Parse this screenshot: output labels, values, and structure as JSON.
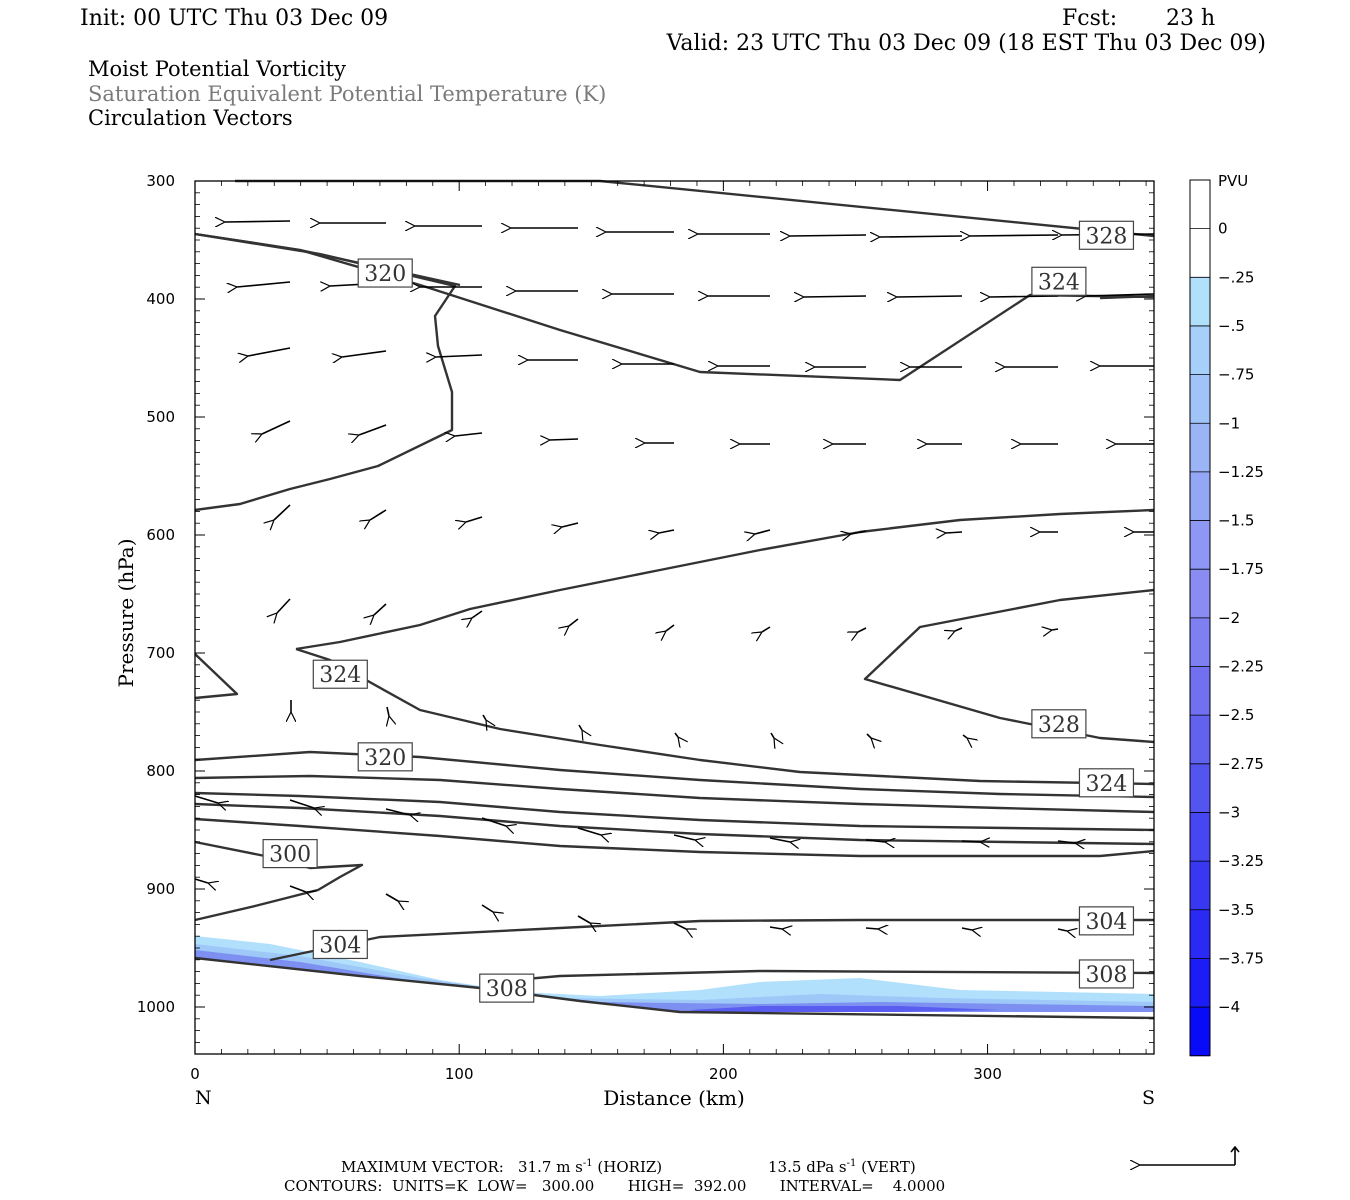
{
  "header": {
    "init": "Init: 00 UTC Thu 03 Dec 09",
    "fcst_label": "Fcst:",
    "fcst_value": "23 h",
    "valid": "Valid: 23 UTC Thu 03 Dec 09 (18 EST Thu 03 Dec 09)",
    "fields": [
      "Moist Potential Vorticity",
      "Saturation Equivalent Potential Temperature (K)",
      "Circulation Vectors"
    ]
  },
  "colors": {
    "contour": "#333333",
    "field2_text": "#7a7a7a",
    "mpv_light": "#b0e0fc",
    "mpv_mid": "#8cc4f8",
    "mpv_dark": "#6a80f0"
  },
  "footer": {
    "max_vector_label": "MAXIMUM VECTOR:",
    "max_vector_h": "31.7",
    "max_vector_h_units": "m s",
    "max_vector_h_tag": "(HORIZ)",
    "max_vector_v": "13.5",
    "max_vector_v_units": "dPa s",
    "max_vector_v_tag": "(VERT)",
    "exponent": "-1",
    "contours": "CONTOURS:  UNITS=K  LOW=   300.00       HIGH=  392.00       INTERVAL=    4.0000"
  },
  "chart_data": {
    "type": "contour",
    "title": "",
    "xlabel": "Distance (km)",
    "ylabel": "Pressure (hPa)",
    "xlim": [
      0,
      363
    ],
    "ylim": [
      1040,
      300
    ],
    "x_ticks": [
      "0",
      "100",
      "200",
      "300"
    ],
    "y_ticks": [
      "300",
      "400",
      "500",
      "600",
      "700",
      "800",
      "900",
      "1000"
    ],
    "x_end_labels": {
      "left": "N",
      "right": "S"
    },
    "colorbar": {
      "units": "PVU",
      "levels": [
        "0",
        "-.25",
        "-.5",
        "-.75",
        "-1",
        "-1.25",
        "-1.5",
        "-1.75",
        "-2",
        "-2.25",
        "-2.5",
        "-2.75",
        "-3",
        "-3.25",
        "-3.5",
        "-3.75",
        "-4"
      ],
      "colors": [
        "#ffffff",
        "#ffffff",
        "#b0e0fc",
        "#a6d0fa",
        "#a0c4f8",
        "#9ab4f6",
        "#94a6f6",
        "#8e98f4",
        "#8a8cf2",
        "#7e80f2",
        "#7070f0",
        "#6262f0",
        "#5454f0",
        "#4646f2",
        "#3838f2",
        "#2a2af4",
        "#1c1cf6",
        "#0a0afa"
      ]
    },
    "contour_labels": [
      {
        "value": "328",
        "x": 345,
        "p": 346
      },
      {
        "value": "320",
        "x": 72,
        "p": 378
      },
      {
        "value": "324",
        "x": 327,
        "p": 385
      },
      {
        "value": "324",
        "x": 55,
        "p": 718
      },
      {
        "value": "328",
        "x": 327,
        "p": 760
      },
      {
        "value": "320",
        "x": 72,
        "p": 788
      },
      {
        "value": "324",
        "x": 345,
        "p": 810
      },
      {
        "value": "300",
        "x": 36,
        "p": 870
      },
      {
        "value": "304",
        "x": 55,
        "p": 947
      },
      {
        "value": "304",
        "x": 345,
        "p": 927
      },
      {
        "value": "308",
        "x": 118,
        "p": 984
      },
      {
        "value": "308",
        "x": 345,
        "p": 972
      }
    ]
  }
}
